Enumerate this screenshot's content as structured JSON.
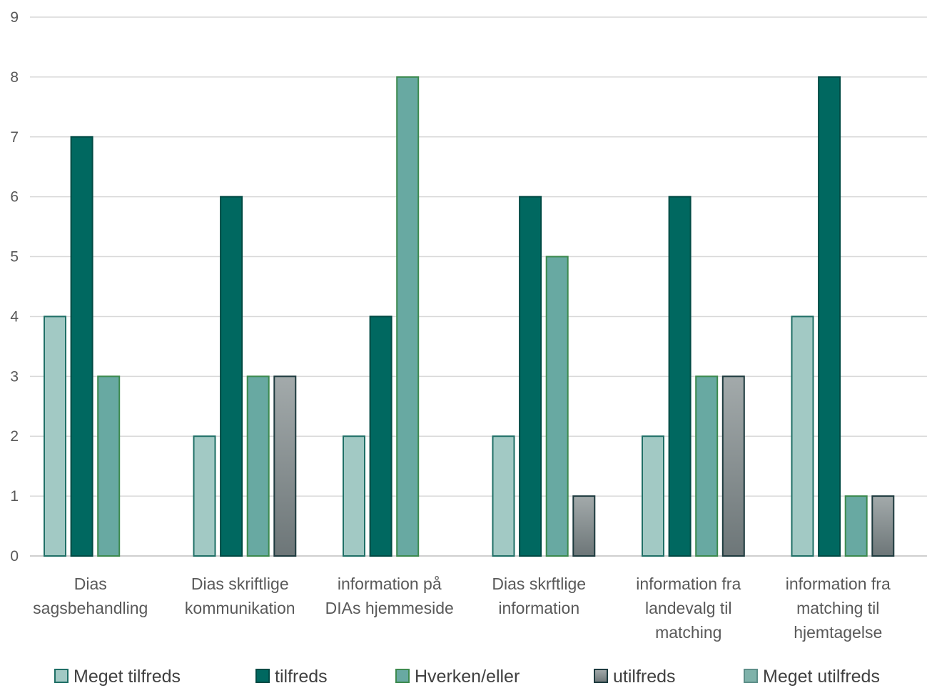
{
  "chart_data": {
    "type": "bar",
    "categories": [
      [
        "Dias",
        "sagsbehandling"
      ],
      [
        "Dias skriftlige",
        "kommunikation"
      ],
      [
        "information på",
        "DIAs hjemmeside"
      ],
      [
        "Dias skrftlige",
        "information"
      ],
      [
        "information fra",
        "landevalg til",
        "matching"
      ],
      [
        "information fra",
        "matching til",
        "hjemtagelse"
      ]
    ],
    "series": [
      {
        "name": "Meget tilfreds",
        "values": [
          4,
          2,
          2,
          2,
          2,
          4
        ],
        "fill": "#a2c9c4",
        "stroke": "#1f6f66"
      },
      {
        "name": "tilfreds",
        "values": [
          7,
          6,
          4,
          6,
          6,
          8
        ],
        "fill": "#006860",
        "stroke": "#004a44"
      },
      {
        "name": "Hverken/eller",
        "values": [
          3,
          3,
          8,
          5,
          3,
          1
        ],
        "fill": "#68a9a2",
        "stroke": "#3d8a4f"
      },
      {
        "name": "utilfreds",
        "values": [
          0,
          3,
          0,
          1,
          3,
          1
        ],
        "fill": "gradient",
        "stroke": "#1e3b3f"
      },
      {
        "name": "Meget utilfreds",
        "values": [
          0,
          0,
          0,
          0,
          0,
          0
        ],
        "fill": "#7fb2aa",
        "stroke": "#5e8f89"
      }
    ],
    "ylim": [
      0,
      9
    ],
    "yticks": [
      "0",
      "1",
      "2",
      "3",
      "4",
      "5",
      "6",
      "7",
      "8",
      "9"
    ],
    "grid": true,
    "legend": "bottom",
    "colors": {
      "grid": "#d9d9d9",
      "axis": "#bfbfbf",
      "text": "#595959"
    }
  }
}
